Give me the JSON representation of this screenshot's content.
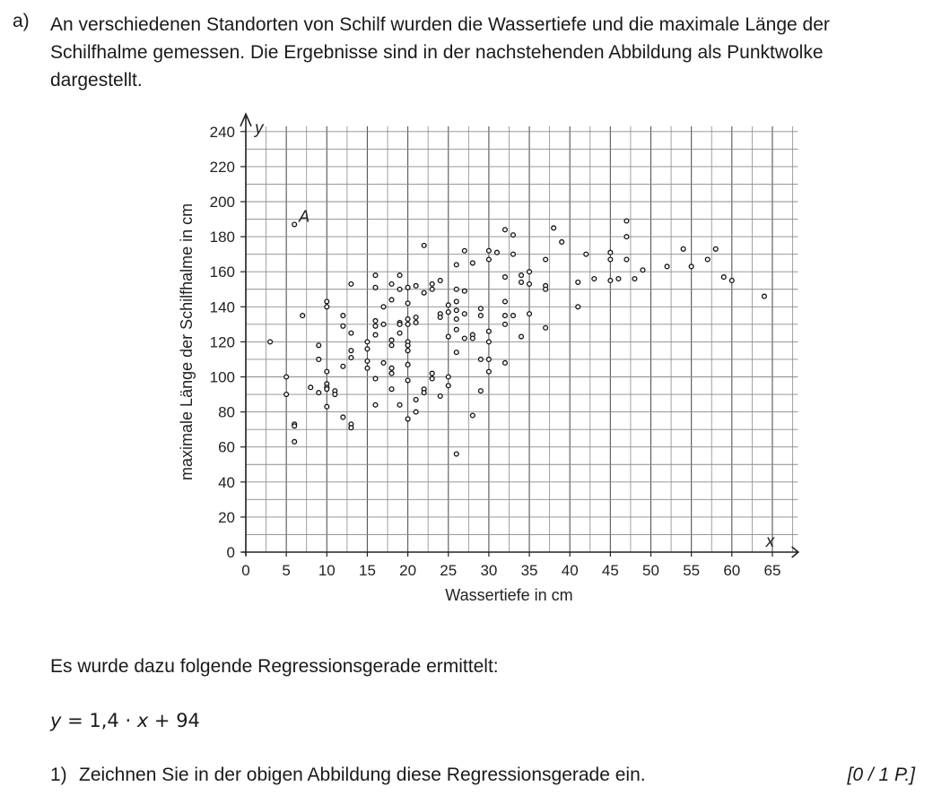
{
  "task": {
    "label": "a)",
    "intro": "An verschiedenen Standorten von Schilf wurden die Wassertiefe und die maximale Länge der Schilfhalme gemessen. Die Ergebnisse sind in der nachstehenden Abbildung als Punktwolke dargestellt."
  },
  "chart_data": {
    "type": "scatter",
    "title": "",
    "xlabel": "Wassertiefe in cm",
    "ylabel": "maximale Länge der Schilfhalme in cm",
    "x_axis_symbol": "x",
    "y_axis_symbol": "y",
    "xlim": [
      0,
      67
    ],
    "ylim": [
      0,
      243
    ],
    "x_ticks": [
      0,
      5,
      10,
      15,
      20,
      25,
      30,
      35,
      40,
      45,
      50,
      55,
      60,
      65
    ],
    "y_ticks": [
      0,
      20,
      40,
      60,
      80,
      100,
      120,
      140,
      160,
      180,
      200,
      220,
      240
    ],
    "grid": true,
    "annotations": [
      {
        "text": "A",
        "x": 6,
        "y": 187
      }
    ],
    "series": [
      {
        "points": [
          [
            3,
            120
          ],
          [
            5,
            100
          ],
          [
            5,
            90
          ],
          [
            6,
            187
          ],
          [
            6,
            73
          ],
          [
            6,
            72
          ],
          [
            6,
            63
          ],
          [
            7,
            135
          ],
          [
            8,
            94
          ],
          [
            9,
            118
          ],
          [
            9,
            110
          ],
          [
            9,
            91
          ],
          [
            10,
            143
          ],
          [
            10,
            140
          ],
          [
            10,
            103
          ],
          [
            10,
            96
          ],
          [
            10,
            94
          ],
          [
            10,
            93
          ],
          [
            10,
            83
          ],
          [
            11,
            92
          ],
          [
            11,
            90
          ],
          [
            12,
            135
          ],
          [
            12,
            129
          ],
          [
            12,
            106
          ],
          [
            12,
            77
          ],
          [
            13,
            153
          ],
          [
            13,
            125
          ],
          [
            13,
            115
          ],
          [
            13,
            111
          ],
          [
            13,
            73
          ],
          [
            13,
            71
          ],
          [
            15,
            120
          ],
          [
            15,
            116
          ],
          [
            15,
            109
          ],
          [
            15,
            105
          ],
          [
            16,
            158
          ],
          [
            16,
            151
          ],
          [
            16,
            132
          ],
          [
            16,
            129
          ],
          [
            16,
            124
          ],
          [
            16,
            99
          ],
          [
            16,
            84
          ],
          [
            17,
            140
          ],
          [
            17,
            130
          ],
          [
            17,
            108
          ],
          [
            18,
            153
          ],
          [
            18,
            144
          ],
          [
            18,
            121
          ],
          [
            18,
            118
          ],
          [
            18,
            105
          ],
          [
            18,
            102
          ],
          [
            18,
            93
          ],
          [
            19,
            158
          ],
          [
            19,
            150
          ],
          [
            19,
            131
          ],
          [
            19,
            130
          ],
          [
            19,
            125
          ],
          [
            19,
            84
          ],
          [
            20,
            151
          ],
          [
            20,
            142
          ],
          [
            20,
            133
          ],
          [
            20,
            130
          ],
          [
            20,
            120
          ],
          [
            20,
            118
          ],
          [
            20,
            115
          ],
          [
            20,
            107
          ],
          [
            20,
            98
          ],
          [
            20,
            76
          ],
          [
            21,
            152
          ],
          [
            21,
            134
          ],
          [
            21,
            131
          ],
          [
            21,
            87
          ],
          [
            21,
            80
          ],
          [
            22,
            175
          ],
          [
            22,
            148
          ],
          [
            22,
            93
          ],
          [
            22,
            91
          ],
          [
            23,
            153
          ],
          [
            23,
            150
          ],
          [
            23,
            102
          ],
          [
            23,
            99
          ],
          [
            24,
            155
          ],
          [
            24,
            136
          ],
          [
            24,
            134
          ],
          [
            24,
            89
          ],
          [
            25,
            141
          ],
          [
            25,
            137
          ],
          [
            25,
            123
          ],
          [
            25,
            100
          ],
          [
            25,
            95
          ],
          [
            26,
            164
          ],
          [
            26,
            150
          ],
          [
            26,
            143
          ],
          [
            26,
            138
          ],
          [
            26,
            133
          ],
          [
            26,
            127
          ],
          [
            26,
            114
          ],
          [
            26,
            56
          ],
          [
            27,
            172
          ],
          [
            27,
            149
          ],
          [
            27,
            136
          ],
          [
            27,
            122
          ],
          [
            28,
            165
          ],
          [
            28,
            124
          ],
          [
            28,
            122
          ],
          [
            28,
            78
          ],
          [
            29,
            139
          ],
          [
            29,
            135
          ],
          [
            29,
            110
          ],
          [
            29,
            92
          ],
          [
            30,
            172
          ],
          [
            30,
            167
          ],
          [
            30,
            126
          ],
          [
            30,
            120
          ],
          [
            30,
            110
          ],
          [
            30,
            103
          ],
          [
            31,
            171
          ],
          [
            32,
            184
          ],
          [
            32,
            157
          ],
          [
            32,
            143
          ],
          [
            32,
            135
          ],
          [
            32,
            130
          ],
          [
            32,
            108
          ],
          [
            33,
            181
          ],
          [
            33,
            170
          ],
          [
            33,
            135
          ],
          [
            34,
            158
          ],
          [
            34,
            154
          ],
          [
            34,
            123
          ],
          [
            35,
            160
          ],
          [
            35,
            153
          ],
          [
            35,
            136
          ],
          [
            37,
            167
          ],
          [
            37,
            152
          ],
          [
            37,
            150
          ],
          [
            37,
            128
          ],
          [
            38,
            185
          ],
          [
            39,
            177
          ],
          [
            41,
            154
          ],
          [
            41,
            140
          ],
          [
            42,
            170
          ],
          [
            43,
            156
          ],
          [
            45,
            171
          ],
          [
            45,
            167
          ],
          [
            45,
            155
          ],
          [
            46,
            156
          ],
          [
            47,
            189
          ],
          [
            47,
            180
          ],
          [
            47,
            167
          ],
          [
            48,
            156
          ],
          [
            49,
            161
          ],
          [
            52,
            163
          ],
          [
            54,
            173
          ],
          [
            55,
            163
          ],
          [
            57,
            167
          ],
          [
            58,
            173
          ],
          [
            59,
            157
          ],
          [
            60,
            155
          ],
          [
            64,
            146
          ]
        ]
      }
    ]
  },
  "regression_intro": "Es wurde dazu folgende Regressionsgerade ermittelt:",
  "formula": {
    "y": "y",
    "mid": " = 1,4 · ",
    "x": "x",
    "tail": " + 94"
  },
  "question": {
    "number": "1)",
    "text": "Zeichnen Sie in der obigen Abbildung diese Regressionsgerade ein.",
    "points": "[0 / 1 P.]"
  }
}
